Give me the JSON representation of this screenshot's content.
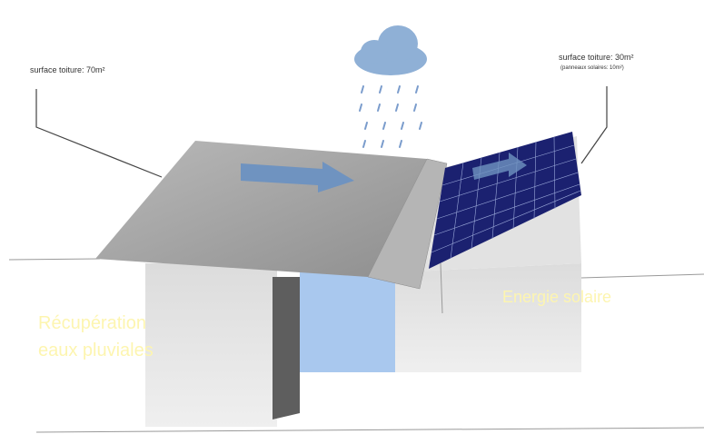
{
  "labels": {
    "left_roof": "surface toiture: 70m²",
    "right_roof": "surface toiture: 30m²",
    "right_roof_note": "(panneaux solaires: 10m²)"
  },
  "captions": {
    "rainwater": [
      "Récupération",
      "eaux pluviales"
    ],
    "solar": "Energie solaire"
  }
}
